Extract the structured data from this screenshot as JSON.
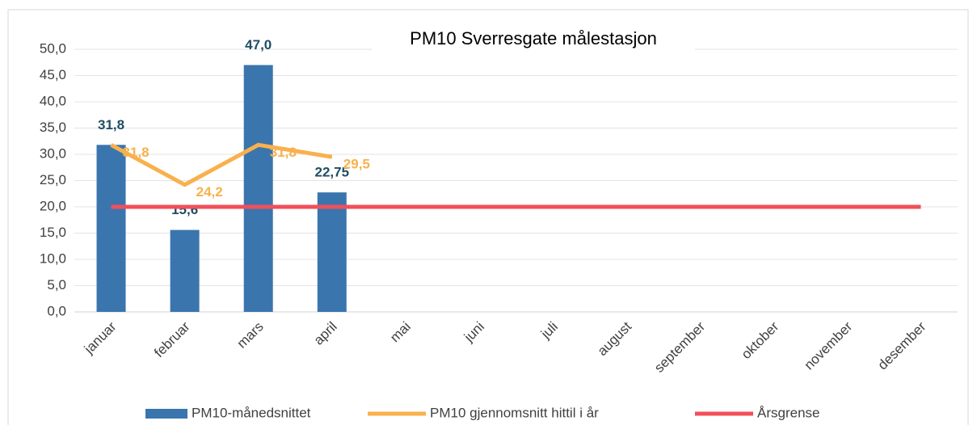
{
  "chart_data": {
    "type": "combo",
    "title": "PM10 Sverresgate målestasjon",
    "categories": [
      "januar",
      "februar",
      "mars",
      "april",
      "mai",
      "juni",
      "juli",
      "august",
      "september",
      "oktober",
      "november",
      "desember"
    ],
    "series": [
      {
        "name": "PM10-månedsnittet",
        "type": "bar",
        "color": "#3a75ae",
        "values": [
          31.8,
          15.6,
          47.0,
          22.75,
          null,
          null,
          null,
          null,
          null,
          null,
          null,
          null
        ],
        "value_labels": [
          "31,8",
          "15,6",
          "47,0",
          "22,75",
          null,
          null,
          null,
          null,
          null,
          null,
          null,
          null
        ]
      },
      {
        "name": "PM10 gjennomsnitt hittil i år",
        "type": "line",
        "color": "#f8b14c",
        "values": [
          31.8,
          24.2,
          31.8,
          29.5,
          null,
          null,
          null,
          null,
          null,
          null,
          null,
          null
        ],
        "value_labels": [
          "31,8",
          "24,2",
          "31,8",
          "29,5",
          null,
          null,
          null,
          null,
          null,
          null,
          null,
          null
        ]
      },
      {
        "name": "Årsgrense",
        "type": "line",
        "color": "#f0505a",
        "values": [
          20,
          20,
          20,
          20,
          20,
          20,
          20,
          20,
          20,
          20,
          20,
          20
        ]
      }
    ],
    "ylim": [
      0,
      50
    ],
    "yticks": [
      {
        "value": 0,
        "label": "0,0"
      },
      {
        "value": 5,
        "label": "5,0"
      },
      {
        "value": 10,
        "label": "10,0"
      },
      {
        "value": 15,
        "label": "15,0"
      },
      {
        "value": 20,
        "label": "20,0"
      },
      {
        "value": 25,
        "label": "25,0"
      },
      {
        "value": 30,
        "label": "30,0"
      },
      {
        "value": 35,
        "label": "35,0"
      },
      {
        "value": 40,
        "label": "40,0"
      },
      {
        "value": 45,
        "label": "45,0"
      },
      {
        "value": 50,
        "label": "50,0"
      }
    ],
    "grid": true,
    "legend": "bottom"
  }
}
